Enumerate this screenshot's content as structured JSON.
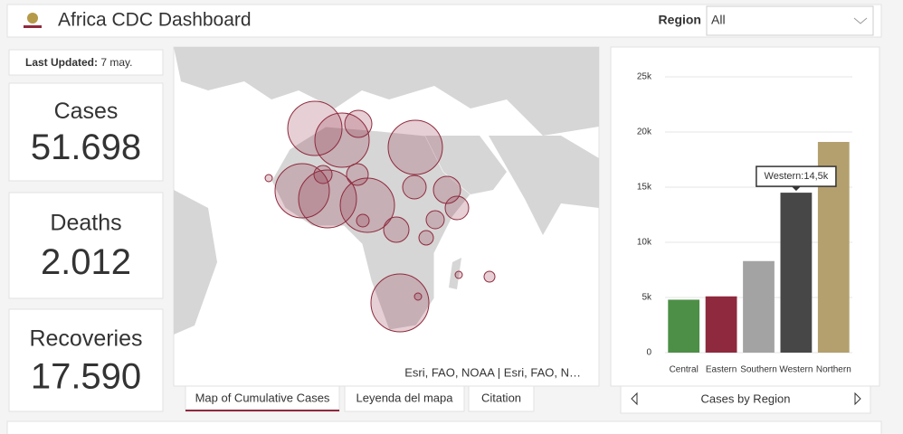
{
  "header": {
    "title": "Africa CDC Dashboard",
    "region_label": "Region",
    "region_value": "All"
  },
  "last_updated": {
    "label": "Last Updated:",
    "value": "7 may."
  },
  "stats": [
    {
      "label": "Cases",
      "value": "51.698"
    },
    {
      "label": "Deaths",
      "value": "2.012"
    },
    {
      "label": "Recoveries",
      "value": "17.590"
    }
  ],
  "map": {
    "attribution": "Esri, FAO, NOAA | Esri, FAO, N…",
    "tabs": [
      "Map of Cumulative Cases",
      "Leyenda del mapa",
      "Citation"
    ]
  },
  "chart_data": {
    "type": "bar",
    "title": "Cases by Region",
    "categories": [
      "Central",
      "Eastern",
      "Southern",
      "Western",
      "Northern"
    ],
    "values": [
      4800,
      5100,
      8300,
      14500,
      19100
    ],
    "colors": [
      "#4e8f48",
      "#8f2a3e",
      "#a3a3a3",
      "#474747",
      "#b3a06e"
    ],
    "tooltip": "Western:14,5k",
    "ylim": [
      0,
      25000
    ],
    "yticks": [
      0,
      {
        "value": 5000,
        "label": "5k"
      },
      {
        "value": 10000,
        "label": "10k"
      },
      {
        "value": 15000,
        "label": "15k"
      },
      {
        "value": 20000,
        "label": "20k"
      },
      {
        "value": 25000,
        "label": "25k"
      }
    ],
    "grid": true
  }
}
